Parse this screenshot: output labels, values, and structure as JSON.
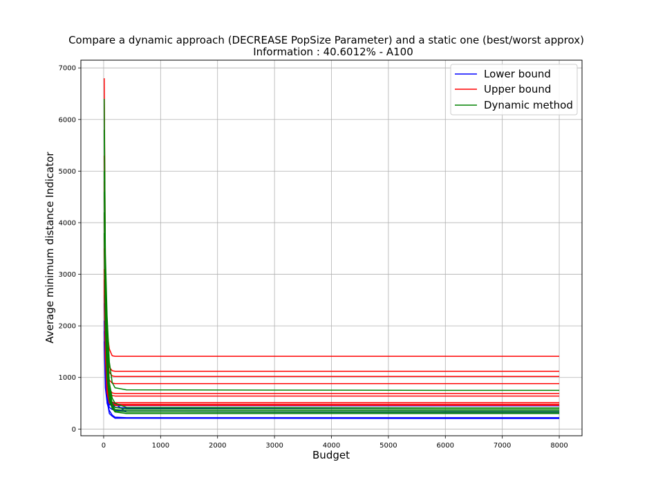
{
  "chart_data": {
    "type": "line",
    "title": "Compare a dynamic approach (DECREASE PopSize Parameter) and a static one (best/worst approx)",
    "subtitle": "Information : 40.6012% - A100",
    "xlabel": "Budget",
    "ylabel": "Average minimum distance Indicator",
    "xlim": [
      -400,
      8400
    ],
    "ylim": [
      -130,
      7150
    ],
    "xticks": [
      0,
      1000,
      2000,
      3000,
      4000,
      5000,
      6000,
      7000,
      8000
    ],
    "yticks": [
      0,
      1000,
      2000,
      3000,
      4000,
      5000,
      6000,
      7000
    ],
    "grid": true,
    "legend_position": "top-right",
    "legend": [
      {
        "label": "Lower bound",
        "color": "#0000ff"
      },
      {
        "label": "Upper bound",
        "color": "#ff0000"
      },
      {
        "label": "Dynamic method",
        "color": "#008000"
      }
    ],
    "series": [
      {
        "group": "Lower bound",
        "color": "#0000ff",
        "x": [
          10,
          30,
          60,
          100,
          150,
          200,
          400,
          6000,
          8000
        ],
        "y": [
          2880,
          1500,
          600,
          420,
          380,
          360,
          360,
          350,
          350
        ]
      },
      {
        "group": "Lower bound",
        "color": "#0000ff",
        "x": [
          10,
          30,
          60,
          100,
          150,
          200,
          400,
          6000,
          8000
        ],
        "y": [
          2440,
          1200,
          500,
          360,
          270,
          230,
          220,
          220,
          220
        ]
      },
      {
        "group": "Lower bound",
        "color": "#0000ff",
        "x": [
          10,
          30,
          60,
          100,
          150,
          200,
          400,
          6000,
          8000
        ],
        "y": [
          2100,
          1000,
          550,
          300,
          250,
          210,
          210,
          205,
          205
        ]
      },
      {
        "group": "Lower bound",
        "color": "#0000ff",
        "x": [
          10,
          30,
          60,
          100,
          150,
          200,
          400,
          6000,
          8000
        ],
        "y": [
          1900,
          900,
          650,
          500,
          450,
          420,
          410,
          410,
          410
        ]
      },
      {
        "group": "Lower bound",
        "color": "#0000ff",
        "x": [
          10,
          30,
          60,
          100,
          150,
          250,
          400,
          6000,
          8000
        ],
        "y": [
          2600,
          1400,
          800,
          600,
          520,
          450,
          330,
          320,
          320
        ]
      },
      {
        "group": "Lower bound",
        "color": "#0000ff",
        "x": [
          10,
          30,
          60,
          100,
          150,
          200,
          400,
          6000,
          8000
        ],
        "y": [
          1700,
          800,
          520,
          470,
          460,
          455,
          455,
          450,
          450
        ]
      },
      {
        "group": "Upper bound",
        "color": "#ff0000",
        "x": [
          10,
          30,
          60,
          100,
          150,
          200,
          400,
          6000,
          8000
        ],
        "y": [
          6800,
          3200,
          1900,
          1550,
          1420,
          1410,
          1410,
          1410,
          1410
        ]
      },
      {
        "group": "Upper bound",
        "color": "#ff0000",
        "x": [
          10,
          30,
          60,
          100,
          150,
          200,
          400,
          6000,
          8000
        ],
        "y": [
          5300,
          2800,
          1600,
          1200,
          1130,
          1120,
          1120,
          1120,
          1120
        ]
      },
      {
        "group": "Upper bound",
        "color": "#ff0000",
        "x": [
          10,
          30,
          60,
          100,
          150,
          200,
          400,
          6000,
          8000
        ],
        "y": [
          4800,
          2500,
          1400,
          1100,
          1030,
          1020,
          1020,
          1020,
          1020
        ]
      },
      {
        "group": "Upper bound",
        "color": "#ff0000",
        "x": [
          10,
          30,
          60,
          100,
          150,
          200,
          400,
          6000,
          8000
        ],
        "y": [
          4200,
          2300,
          1200,
          950,
          890,
          880,
          880,
          880,
          880
        ]
      },
      {
        "group": "Upper bound",
        "color": "#ff0000",
        "x": [
          10,
          30,
          60,
          100,
          150,
          200,
          400,
          6000,
          8000
        ],
        "y": [
          3800,
          2000,
          1000,
          780,
          700,
          690,
          690,
          690,
          690
        ]
      },
      {
        "group": "Upper bound",
        "color": "#ff0000",
        "x": [
          10,
          30,
          60,
          100,
          150,
          200,
          400,
          6000,
          8000
        ],
        "y": [
          3500,
          1800,
          900,
          700,
          650,
          640,
          640,
          640,
          640
        ]
      },
      {
        "group": "Upper bound",
        "color": "#ff0000",
        "x": [
          10,
          30,
          60,
          100,
          150,
          200,
          400,
          6000,
          8000
        ],
        "y": [
          3100,
          1600,
          800,
          560,
          520,
          510,
          510,
          510,
          510
        ]
      },
      {
        "group": "Upper bound",
        "color": "#ff0000",
        "x": [
          10,
          30,
          60,
          100,
          150,
          200,
          400,
          6000,
          8000
        ],
        "y": [
          2900,
          1500,
          750,
          520,
          490,
          480,
          480,
          480,
          480
        ]
      },
      {
        "group": "Upper bound",
        "color": "#ff0000",
        "x": [
          10,
          30,
          60,
          100,
          150,
          200,
          400,
          6000,
          8000
        ],
        "y": [
          2700,
          1400,
          700,
          500,
          470,
          460,
          460,
          460,
          460
        ]
      },
      {
        "group": "Dynamic method",
        "color": "#008000",
        "x": [
          10,
          30,
          60,
          100,
          150,
          200,
          400,
          6000,
          8000
        ],
        "y": [
          6400,
          3400,
          2200,
          1300,
          900,
          800,
          760,
          750,
          750
        ]
      },
      {
        "group": "Dynamic method",
        "color": "#008000",
        "x": [
          10,
          30,
          60,
          100,
          150,
          200,
          400,
          6000,
          8000
        ],
        "y": [
          5800,
          3000,
          1800,
          900,
          600,
          500,
          420,
          410,
          410
        ]
      },
      {
        "group": "Dynamic method",
        "color": "#008000",
        "x": [
          10,
          30,
          60,
          100,
          150,
          200,
          400,
          6000,
          8000
        ],
        "y": [
          5000,
          2700,
          1500,
          800,
          500,
          420,
          390,
          385,
          385
        ]
      },
      {
        "group": "Dynamic method",
        "color": "#008000",
        "x": [
          10,
          30,
          60,
          100,
          150,
          200,
          400,
          6000,
          8000
        ],
        "y": [
          4600,
          2400,
          1300,
          700,
          450,
          380,
          360,
          355,
          355
        ]
      },
      {
        "group": "Dynamic method",
        "color": "#008000",
        "x": [
          10,
          30,
          60,
          100,
          150,
          200,
          400,
          6000,
          8000
        ],
        "y": [
          4200,
          2200,
          1100,
          600,
          420,
          350,
          330,
          325,
          325
        ]
      },
      {
        "group": "Dynamic method",
        "color": "#008000",
        "x": [
          10,
          30,
          60,
          100,
          150,
          200,
          400,
          6000,
          8000
        ],
        "y": [
          3800,
          2000,
          1000,
          550,
          400,
          330,
          300,
          300,
          300
        ]
      }
    ]
  }
}
